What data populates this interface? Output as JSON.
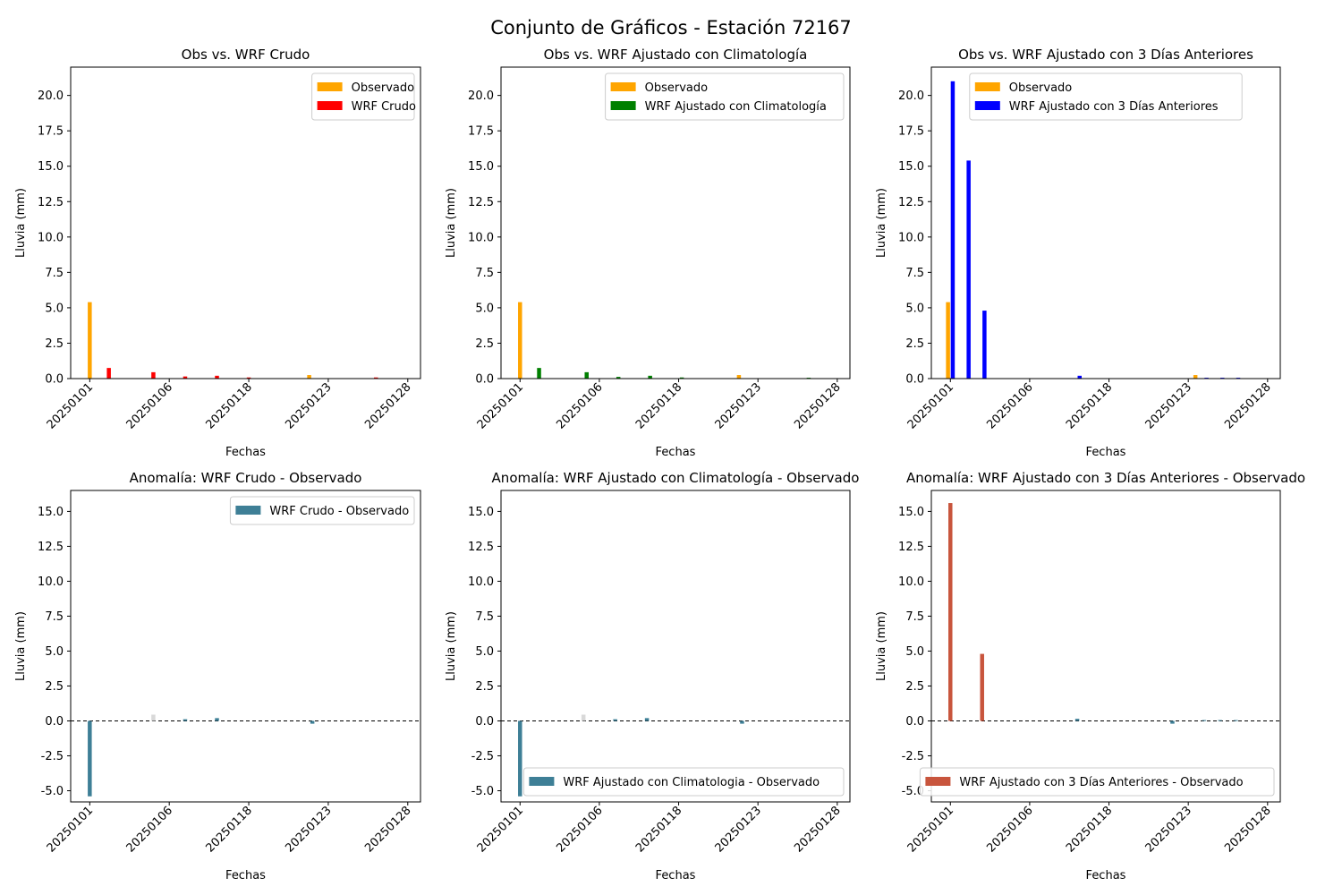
{
  "figure_title": "Conjunto de Gráficos - Estación 72167",
  "chart_data": [
    {
      "type": "bar",
      "title": "Obs vs. WRF Crudo",
      "xlabel": "Fechas",
      "ylabel": "Lluvia (mm)",
      "ylim": [
        0,
        22.0
      ],
      "yticks": [
        0.0,
        2.5,
        5.0,
        7.5,
        10.0,
        12.5,
        15.0,
        17.5,
        20.0
      ],
      "xtick_labels": [
        "20250101",
        "20250106",
        "20250118",
        "20250123",
        "20250128"
      ],
      "legend_position": "top-right",
      "series": [
        {
          "name": "Observado",
          "color": "#FFA500",
          "values": [
            5.4,
            0,
            0,
            0,
            0,
            0,
            0,
            0,
            0,
            0,
            0,
            0,
            0,
            0,
            0,
            0,
            0,
            0,
            0,
            0.2,
            0,
            0,
            0,
            0,
            0,
            0,
            0
          ]
        },
        {
          "name": "WRF Crudo",
          "color": "#FF0000",
          "values": [
            0,
            0,
            0,
            0,
            0.75,
            0,
            0,
            0,
            0,
            0,
            0,
            0,
            0,
            0,
            0,
            0,
            0.1,
            0,
            0,
            0,
            0,
            0,
            0,
            0,
            0,
            0,
            0
          ]
        }
      ],
      "bars": [
        {
          "series": 0,
          "x": 0.0,
          "value": 5.4
        },
        {
          "series": 1,
          "x": 1.2,
          "value": 0.75
        },
        {
          "series": 1,
          "x": 4.0,
          "value": 0.45
        },
        {
          "series": 1,
          "x": 6.0,
          "value": 0.15
        },
        {
          "series": 1,
          "x": 8.0,
          "value": 0.2
        },
        {
          "series": 1,
          "x": 10.0,
          "value": 0.08
        },
        {
          "series": 0,
          "x": 13.8,
          "value": 0.25
        },
        {
          "series": 1,
          "x": 18.0,
          "value": 0.08
        }
      ],
      "x_categories": 20
    },
    {
      "type": "bar",
      "title": "Obs vs. WRF Ajustado con Climatología",
      "xlabel": "Fechas",
      "ylabel": "Lluvia (mm)",
      "ylim": [
        0,
        22.0
      ],
      "yticks": [
        0.0,
        2.5,
        5.0,
        7.5,
        10.0,
        12.5,
        15.0,
        17.5,
        20.0
      ],
      "xtick_labels": [
        "20250101",
        "20250106",
        "20250118",
        "20250123",
        "20250128"
      ],
      "legend_position": "top-right",
      "series": [
        {
          "name": "Observado",
          "color": "#FFA500",
          "values": []
        },
        {
          "name": "WRF Ajustado con Climatología",
          "color": "#008000",
          "values": []
        }
      ],
      "bars": [
        {
          "series": 0,
          "x": 0.0,
          "value": 5.4
        },
        {
          "series": 1,
          "x": 1.2,
          "value": 0.75
        },
        {
          "series": 1,
          "x": 4.2,
          "value": 0.45
        },
        {
          "series": 1,
          "x": 6.2,
          "value": 0.12
        },
        {
          "series": 1,
          "x": 8.2,
          "value": 0.2
        },
        {
          "series": 1,
          "x": 10.2,
          "value": 0.08
        },
        {
          "series": 0,
          "x": 13.8,
          "value": 0.25
        },
        {
          "series": 1,
          "x": 18.2,
          "value": 0.06
        }
      ],
      "x_categories": 20
    },
    {
      "type": "bar",
      "title": "Obs vs. WRF Ajustado con 3 Días Anteriores",
      "xlabel": "Fechas",
      "ylabel": "Lluvia (mm)",
      "ylim": [
        0,
        22.0
      ],
      "yticks": [
        0.0,
        2.5,
        5.0,
        7.5,
        10.0,
        12.5,
        15.0,
        17.5,
        20.0
      ],
      "xtick_labels": [
        "20250101",
        "20250106",
        "20250118",
        "20250123",
        "20250128"
      ],
      "legend_position": "top-center",
      "series": [
        {
          "name": "Observado",
          "color": "#FFA500",
          "values": []
        },
        {
          "name": "WRF Ajustado con 3 Días Anteriores",
          "color": "#0000FF",
          "values": []
        }
      ],
      "bars": [
        {
          "series": 0,
          "x": -0.15,
          "value": 5.4
        },
        {
          "series": 1,
          "x": 0.15,
          "value": 21.0
        },
        {
          "series": 1,
          "x": 1.15,
          "value": 15.4
        },
        {
          "series": 1,
          "x": 2.15,
          "value": 4.8
        },
        {
          "series": 1,
          "x": 8.15,
          "value": 0.2
        },
        {
          "series": 0,
          "x": 15.45,
          "value": 0.25
        },
        {
          "series": 1,
          "x": 16.15,
          "value": 0.06
        },
        {
          "series": 1,
          "x": 17.15,
          "value": 0.06
        },
        {
          "series": 1,
          "x": 18.15,
          "value": 0.06
        }
      ],
      "x_categories": 20
    },
    {
      "type": "bar",
      "title": "Anomalía: WRF Crudo - Observado",
      "xlabel": "Fechas",
      "ylabel": "Lluvia (mm)",
      "ylim": [
        -5.8,
        16.5
      ],
      "yticks": [
        -5.0,
        -2.5,
        0.0,
        2.5,
        5.0,
        7.5,
        10.0,
        12.5,
        15.0
      ],
      "xtick_labels": [
        "20250101",
        "20250106",
        "20250118",
        "20250123",
        "20250128"
      ],
      "legend_position": "top-right",
      "zero_line": true,
      "series": [
        {
          "name": "WRF Crudo - Observado",
          "color": "#3E7F96",
          "values": []
        }
      ],
      "bars": [
        {
          "series": 0,
          "x": 0.0,
          "value": -5.4
        },
        {
          "series": 0,
          "x": 4.0,
          "value": 0.45,
          "faint": true
        },
        {
          "series": 0,
          "x": 6.0,
          "value": 0.12
        },
        {
          "series": 0,
          "x": 8.0,
          "value": 0.2
        },
        {
          "series": 0,
          "x": 14.0,
          "value": -0.2
        }
      ],
      "x_categories": 20
    },
    {
      "type": "bar",
      "title": "Anomalía: WRF Ajustado con Climatología - Observado",
      "xlabel": "Fechas",
      "ylabel": "Lluvia (mm)",
      "ylim": [
        -5.8,
        16.5
      ],
      "yticks": [
        -5.0,
        -2.5,
        0.0,
        2.5,
        5.0,
        7.5,
        10.0,
        12.5,
        15.0
      ],
      "xtick_labels": [
        "20250101",
        "20250106",
        "20250118",
        "20250123",
        "20250128"
      ],
      "legend_position": "bottom-right",
      "zero_line": true,
      "series": [
        {
          "name": "WRF Ajustado con Climatologia - Observado",
          "color": "#3E7F96",
          "values": []
        }
      ],
      "bars": [
        {
          "series": 0,
          "x": 0.0,
          "value": -5.4
        },
        {
          "series": 0,
          "x": 4.0,
          "value": 0.45,
          "faint": true
        },
        {
          "series": 0,
          "x": 6.0,
          "value": 0.12
        },
        {
          "series": 0,
          "x": 8.0,
          "value": 0.2
        },
        {
          "series": 0,
          "x": 14.0,
          "value": -0.2
        }
      ],
      "x_categories": 20
    },
    {
      "type": "bar",
      "title": "Anomalía: WRF Ajustado con 3 Días Anteriores - Observado",
      "xlabel": "Fechas",
      "ylabel": "Lluvia (mm)",
      "ylim": [
        -5.8,
        16.5
      ],
      "yticks": [
        -5.0,
        -2.5,
        0.0,
        2.5,
        5.0,
        7.5,
        10.0,
        12.5,
        15.0
      ],
      "xtick_labels": [
        "20250101",
        "20250106",
        "20250118",
        "20250123",
        "20250128"
      ],
      "legend_position": "bottom-right",
      "zero_line": true,
      "series": [
        {
          "name": "WRF Ajustado con 3 Días Anteriores - Observado",
          "color": "#C8553D",
          "values": []
        }
      ],
      "bars": [
        {
          "series": 0,
          "x": 0.0,
          "value": 15.6
        },
        {
          "series": 0,
          "x": 2.0,
          "value": 4.8
        },
        {
          "series": 0,
          "x": 8.0,
          "value": 0.15,
          "alt": true
        },
        {
          "series": 0,
          "x": 14.0,
          "value": -0.2,
          "alt": true
        },
        {
          "series": 0,
          "x": 16.0,
          "value": 0.06,
          "alt": true
        },
        {
          "series": 0,
          "x": 17.0,
          "value": 0.06,
          "alt": true
        },
        {
          "series": 0,
          "x": 18.0,
          "value": 0.06,
          "alt": true
        }
      ],
      "x_categories": 20
    }
  ]
}
